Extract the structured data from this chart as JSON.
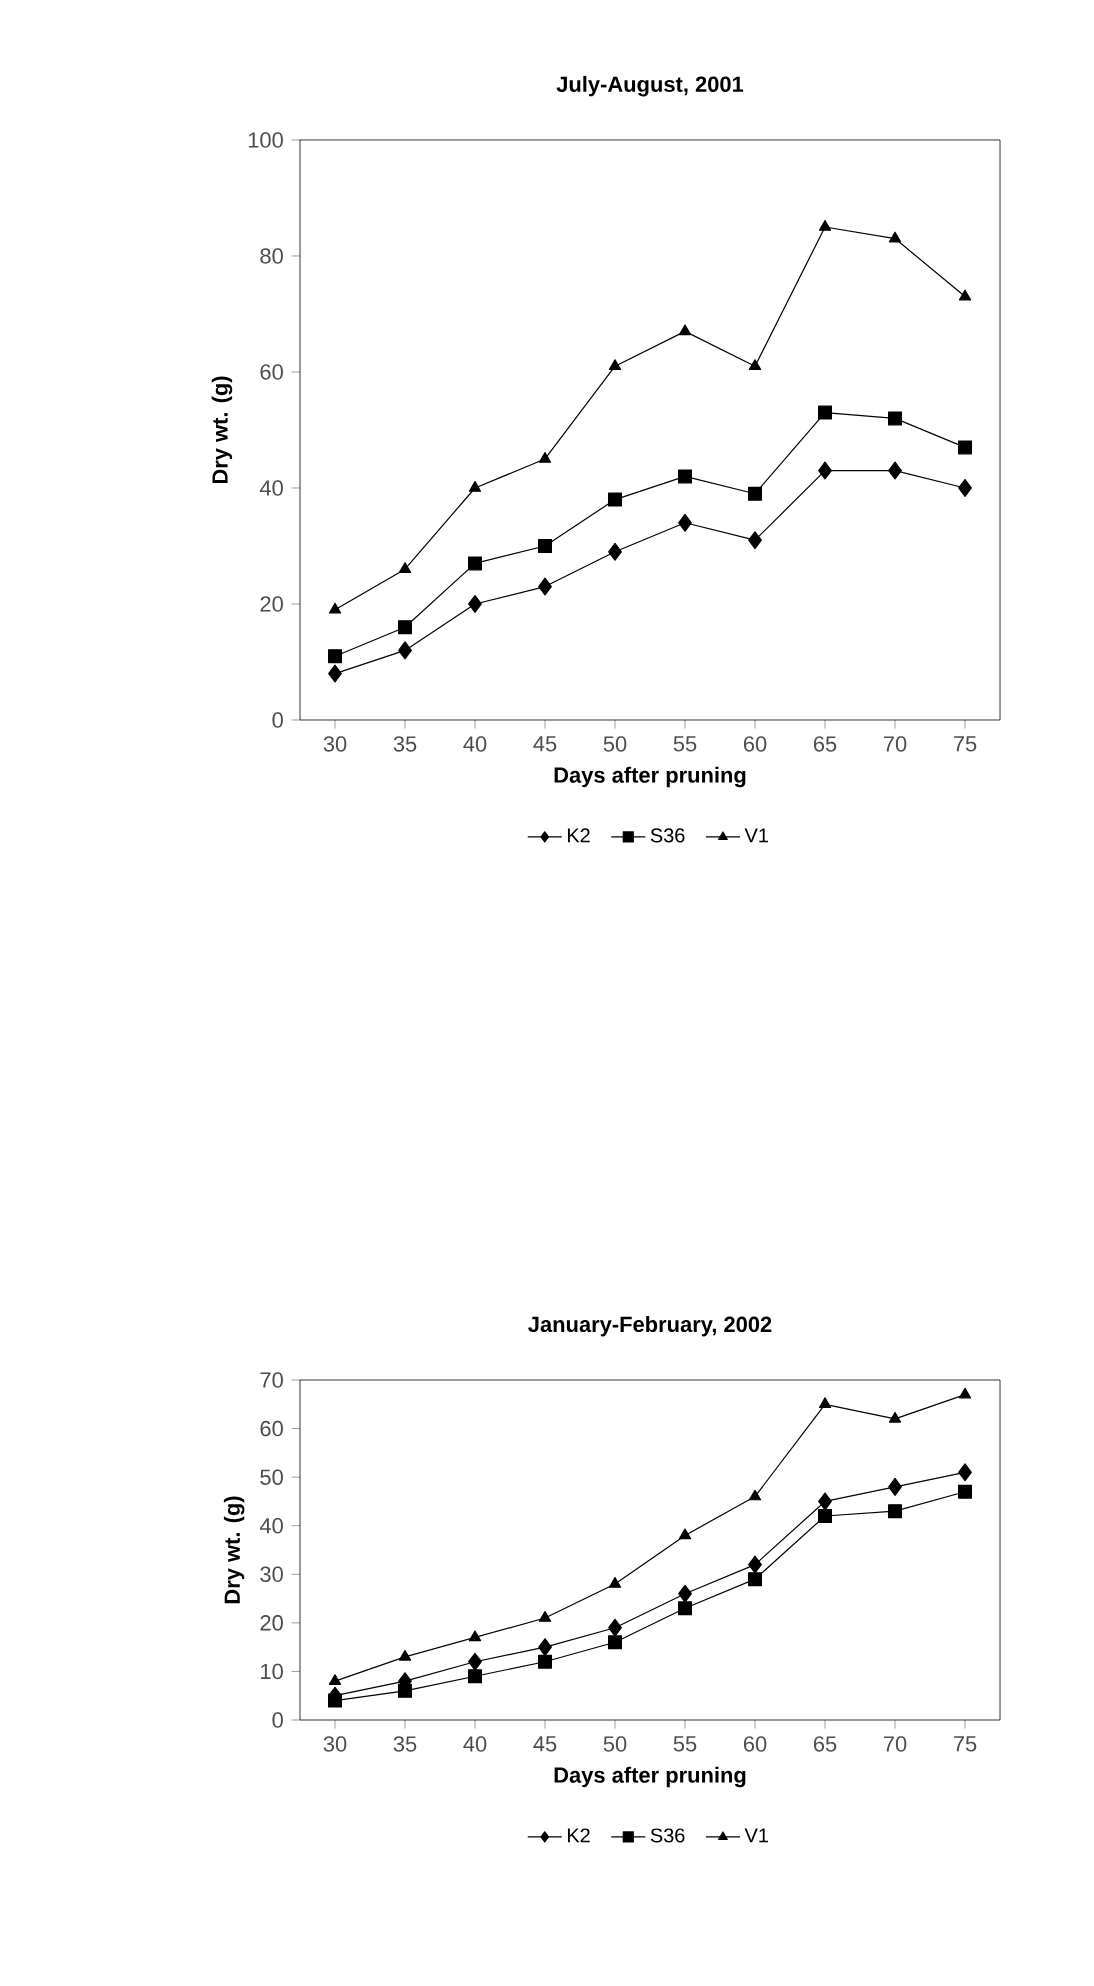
{
  "chart_data": [
    {
      "type": "line",
      "title": "July-August, 2001",
      "xlabel": "Days after pruning",
      "ylabel": "Dry wt. (g)",
      "categories": [
        "30",
        "35",
        "40",
        "45",
        "50",
        "55",
        "60",
        "65",
        "70",
        "75"
      ],
      "series": [
        {
          "name": "K2",
          "color": "#000000",
          "marker": "diamond",
          "values": [
            8,
            12,
            20,
            23,
            29,
            34,
            31,
            43,
            43,
            40
          ]
        },
        {
          "name": "S36",
          "color": "#000000",
          "marker": "square",
          "values": [
            11,
            16,
            27,
            30,
            38,
            42,
            39,
            53,
            52,
            47
          ]
        },
        {
          "name": "V1",
          "color": "#000000",
          "marker": "triangle",
          "values": [
            19,
            26,
            40,
            45,
            61,
            67,
            61,
            85,
            83,
            73
          ]
        }
      ],
      "ylim": [
        0,
        100
      ],
      "yticks": [
        0,
        20,
        40,
        60,
        80,
        100
      ],
      "legend": "bottom",
      "grid": false
    },
    {
      "type": "line",
      "title": "January-February, 2002",
      "xlabel": "Days after pruning",
      "ylabel": "Dry wt. (g)",
      "categories": [
        "30",
        "35",
        "40",
        "45",
        "50",
        "55",
        "60",
        "65",
        "70",
        "75"
      ],
      "series": [
        {
          "name": "K2",
          "color": "#000000",
          "marker": "diamond",
          "values": [
            5,
            8,
            12,
            15,
            19,
            26,
            32,
            45,
            48,
            51
          ]
        },
        {
          "name": "S36",
          "color": "#000000",
          "marker": "square",
          "values": [
            4,
            6,
            9,
            12,
            16,
            23,
            29,
            42,
            43,
            47
          ]
        },
        {
          "name": "V1",
          "color": "#000000",
          "marker": "triangle",
          "values": [
            8,
            13,
            17,
            21,
            28,
            38,
            46,
            65,
            62,
            67
          ]
        }
      ],
      "ylim": [
        0,
        70
      ],
      "yticks": [
        0,
        10,
        20,
        30,
        40,
        50,
        60,
        70
      ],
      "legend": "bottom",
      "grid": false
    }
  ]
}
